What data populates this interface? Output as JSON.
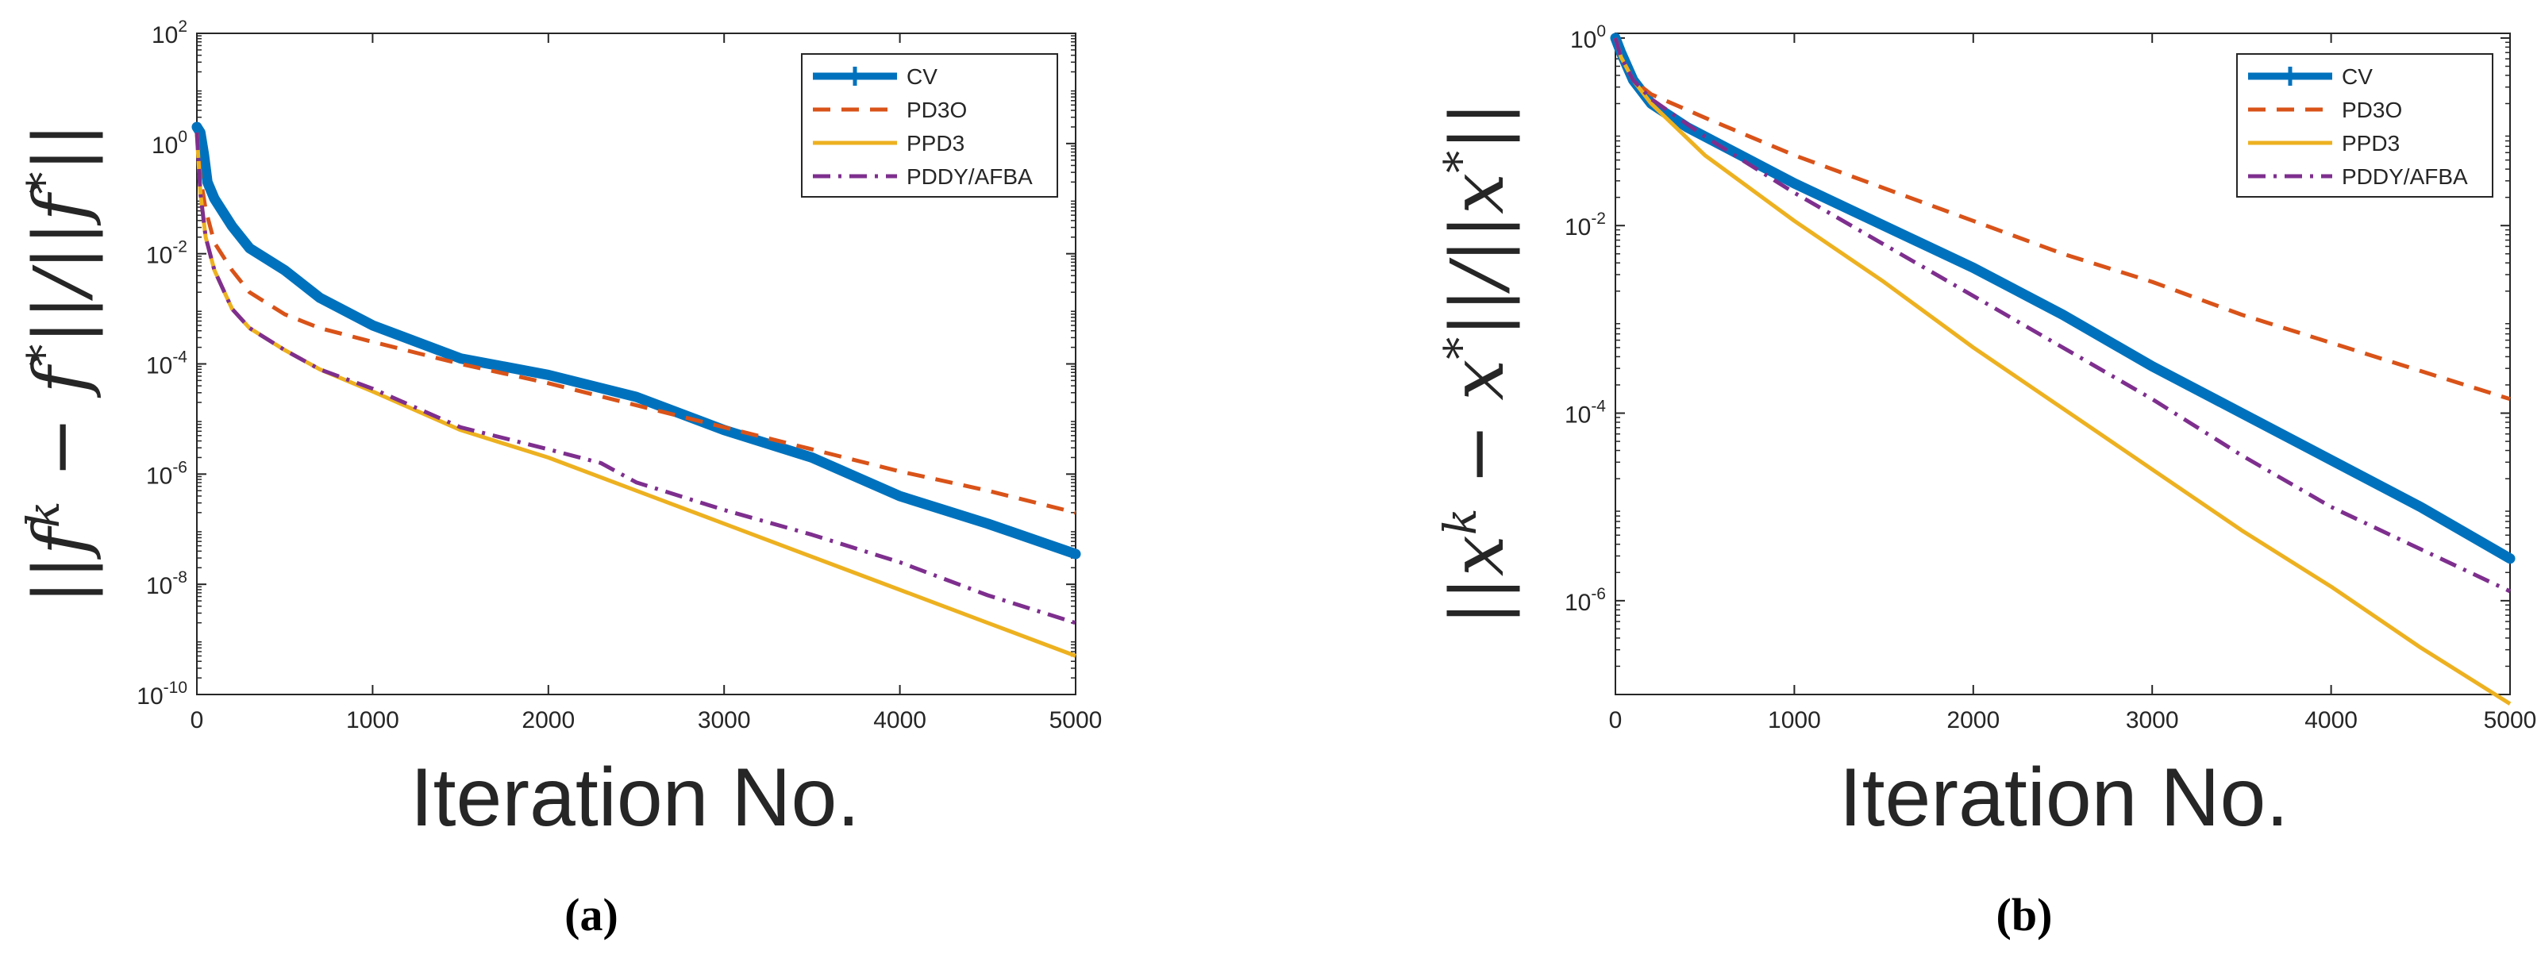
{
  "chart_data": [
    {
      "type": "line",
      "caption": "(a)",
      "xlabel": "Iteration    No.",
      "ylabel": "||f^k − f*||/||f*||",
      "ylabel_parts": [
        "||",
        "f",
        "k",
        " − ",
        "f",
        "*",
        "||/||",
        "f",
        "*",
        "||"
      ],
      "xlim": [
        0,
        5000
      ],
      "ylim_log10": [
        -10,
        2
      ],
      "yscale": "log",
      "xticks": [
        0,
        1000,
        2000,
        3000,
        4000,
        5000
      ],
      "xtick_labels": [
        "0",
        "1000",
        "2000",
        "3000",
        "4000",
        "5000"
      ],
      "yticks_log10": [
        -10,
        -8,
        -6,
        -4,
        -2,
        0,
        2
      ],
      "ytick_base": "10",
      "ytick_exponents": [
        "-10",
        "-8",
        "-6",
        "-4",
        "-2",
        "0",
        "2"
      ],
      "legend": {
        "position": "top-right",
        "entries": [
          "CV",
          "PD3O",
          "PPD3",
          "PDDY/AFBA"
        ]
      },
      "series": [
        {
          "name": "CV",
          "color": "#0072BD",
          "style": "thick-marker",
          "x": [
            0,
            20,
            40,
            60,
            100,
            200,
            300,
            500,
            700,
            1000,
            1500,
            2000,
            2500,
            3000,
            3500,
            4000,
            4500,
            5000
          ],
          "y_log10": [
            0.3,
            0.2,
            -0.2,
            -0.7,
            -1.0,
            -1.5,
            -1.9,
            -2.3,
            -2.8,
            -3.3,
            -3.9,
            -4.2,
            -4.6,
            -5.2,
            -5.7,
            -6.4,
            -6.9,
            -7.45
          ]
        },
        {
          "name": "PD3O",
          "color": "#D95319",
          "style": "dashed",
          "x": [
            0,
            20,
            50,
            100,
            200,
            300,
            500,
            700,
            1000,
            1500,
            2000,
            2500,
            3000,
            3500,
            4000,
            4500,
            5000
          ],
          "y_log10": [
            0.2,
            -0.6,
            -1.2,
            -1.8,
            -2.3,
            -2.7,
            -3.1,
            -3.35,
            -3.6,
            -4.0,
            -4.35,
            -4.75,
            -5.15,
            -5.55,
            -5.95,
            -6.3,
            -6.7
          ]
        },
        {
          "name": "PPD3",
          "color": "#EDB120",
          "style": "solid",
          "x": [
            0,
            20,
            50,
            100,
            200,
            300,
            500,
            700,
            1000,
            1500,
            2000,
            2500,
            3000,
            3500,
            4000,
            4500,
            5000
          ],
          "y_log10": [
            0.2,
            -0.9,
            -1.7,
            -2.3,
            -3.0,
            -3.35,
            -3.75,
            -4.1,
            -4.5,
            -5.2,
            -5.7,
            -6.3,
            -6.9,
            -7.5,
            -8.1,
            -8.7,
            -9.3
          ]
        },
        {
          "name": "PDDY/AFBA",
          "color": "#7E2F8E",
          "style": "dashdot",
          "x": [
            0,
            20,
            50,
            100,
            200,
            300,
            500,
            700,
            1000,
            1500,
            2000,
            2300,
            2500,
            3000,
            3500,
            4000,
            4500,
            5000
          ],
          "y_log10": [
            0.2,
            -0.9,
            -1.7,
            -2.3,
            -3.0,
            -3.35,
            -3.75,
            -4.1,
            -4.45,
            -5.15,
            -5.55,
            -5.8,
            -6.15,
            -6.65,
            -7.1,
            -7.6,
            -8.2,
            -8.7
          ]
        }
      ]
    },
    {
      "type": "line",
      "caption": "(b)",
      "xlabel": "Iteration    No.",
      "ylabel": "||x^k − x*||/||x*||",
      "ylabel_parts": [
        "||",
        "x",
        "k",
        " − ",
        "x",
        "*",
        "||/||",
        "x",
        "*",
        "||"
      ],
      "xlim": [
        0,
        5000
      ],
      "ylim_log10": [
        -7,
        0.05
      ],
      "yscale": "log",
      "xticks": [
        0,
        1000,
        2000,
        3000,
        4000,
        5000
      ],
      "xtick_labels": [
        "0",
        "1000",
        "2000",
        "3000",
        "4000",
        "5000"
      ],
      "yticks_log10": [
        -6,
        -4,
        -2,
        0
      ],
      "ytick_base": "10",
      "ytick_exponents": [
        "-6",
        "-4",
        "-2",
        "0"
      ],
      "legend": {
        "position": "top-right",
        "entries": [
          "CV",
          "PD3O",
          "PPD3",
          "PDDY/AFBA"
        ]
      },
      "series": [
        {
          "name": "CV",
          "color": "#0072BD",
          "style": "thick-marker",
          "x": [
            0,
            30,
            100,
            200,
            400,
            700,
            1000,
            1500,
            2000,
            2500,
            3000,
            3500,
            4000,
            4500,
            5000
          ],
          "y_log10": [
            0.0,
            -0.15,
            -0.45,
            -0.7,
            -0.95,
            -1.25,
            -1.55,
            -2.0,
            -2.45,
            -2.95,
            -3.5,
            -4.0,
            -4.5,
            -5.0,
            -5.55
          ]
        },
        {
          "name": "PD3O",
          "color": "#D95319",
          "style": "dashed",
          "x": [
            0,
            30,
            100,
            200,
            500,
            1000,
            1500,
            2000,
            2500,
            3000,
            3500,
            4000,
            4500,
            5000
          ],
          "y_log10": [
            0.0,
            -0.2,
            -0.45,
            -0.6,
            -0.85,
            -1.25,
            -1.6,
            -1.95,
            -2.3,
            -2.6,
            -2.95,
            -3.25,
            -3.55,
            -3.85
          ]
        },
        {
          "name": "PPD3",
          "color": "#EDB120",
          "style": "solid",
          "x": [
            0,
            30,
            100,
            200,
            500,
            1000,
            1500,
            2000,
            2500,
            3000,
            3500,
            4000,
            4500,
            5000
          ],
          "y_log10": [
            0.0,
            -0.2,
            -0.45,
            -0.7,
            -1.25,
            -1.95,
            -2.6,
            -3.3,
            -3.95,
            -4.6,
            -5.25,
            -5.85,
            -6.5,
            -7.1
          ]
        },
        {
          "name": "PDDY/AFBA",
          "color": "#7E2F8E",
          "style": "dashdot",
          "x": [
            0,
            30,
            100,
            200,
            500,
            1000,
            1500,
            2000,
            2500,
            3000,
            3500,
            4000,
            4500,
            5000
          ],
          "y_log10": [
            0.0,
            -0.2,
            -0.45,
            -0.65,
            -1.05,
            -1.65,
            -2.2,
            -2.75,
            -3.3,
            -3.85,
            -4.45,
            -5.0,
            -5.45,
            -5.9
          ]
        }
      ]
    }
  ]
}
